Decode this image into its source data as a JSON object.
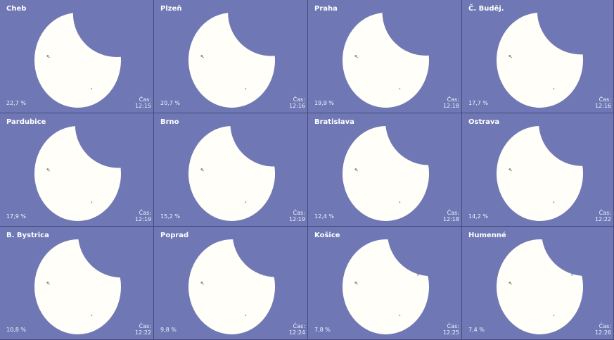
{
  "time_label": "Čas:",
  "colors": {
    "sky": "#6f78b4",
    "sun": "#fffef8",
    "text": "#ffffff"
  },
  "tiles": [
    {
      "city": "Cheb",
      "percent": "22,7 %",
      "time": "12:15"
    },
    {
      "city": "Plzeň",
      "percent": "20,7 %",
      "time": "12:16"
    },
    {
      "city": "Praha",
      "percent": "19,9 %",
      "time": "12:18"
    },
    {
      "city": "Č. Buděj.",
      "percent": "17,7 %",
      "time": "12:16"
    },
    {
      "city": "Pardubice",
      "percent": "17,9 %",
      "time": "12:19"
    },
    {
      "city": "Brno",
      "percent": "15,2 %",
      "time": "12:19"
    },
    {
      "city": "Bratislava",
      "percent": "12,4 %",
      "time": "12:18"
    },
    {
      "city": "Ostrava",
      "percent": "14,2 %",
      "time": "12:22"
    },
    {
      "city": "B. Bystrica",
      "percent": "10,8 %",
      "time": "12:22"
    },
    {
      "city": "Poprad",
      "percent": "9,8 %",
      "time": "12:24"
    },
    {
      "city": "Košice",
      "percent": "7,8 %",
      "time": "12:25"
    },
    {
      "city": "Humenné",
      "percent": "7,4 %",
      "time": "12:26"
    }
  ]
}
